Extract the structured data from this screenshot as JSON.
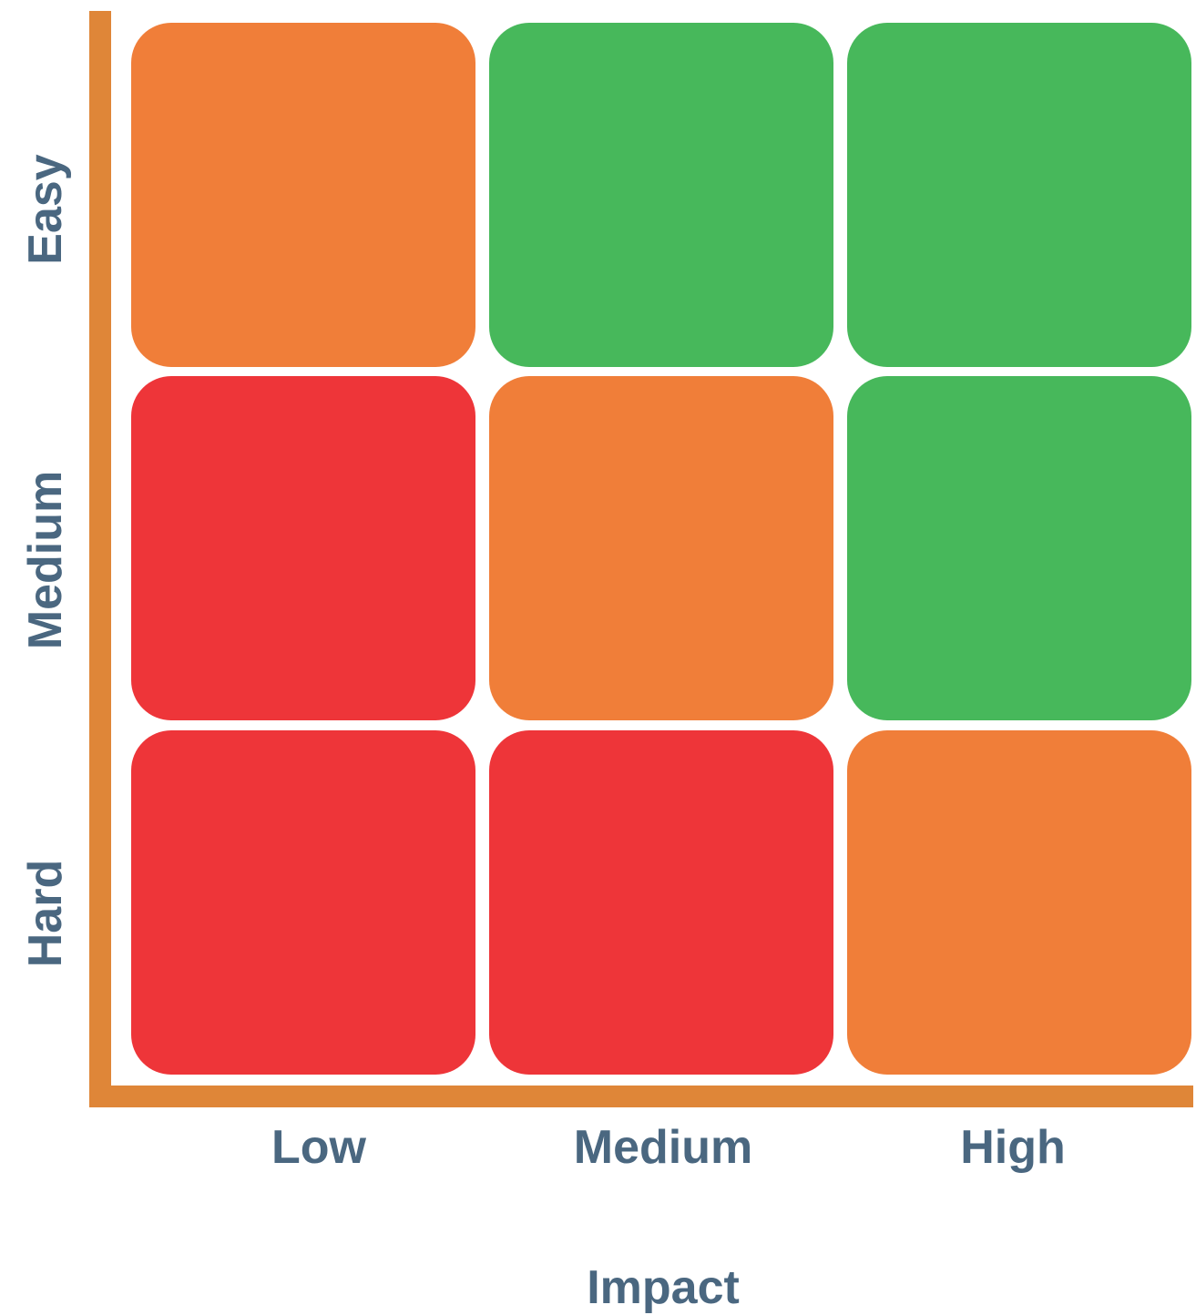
{
  "matrix": {
    "y_labels": [
      "Easy",
      "Medium",
      "Hard"
    ],
    "x_labels": [
      "Low",
      "Medium",
      "High"
    ],
    "x_title": "Impact",
    "cells": [
      [
        "orange",
        "green",
        "green"
      ],
      [
        "red",
        "orange",
        "green"
      ],
      [
        "red",
        "red",
        "orange"
      ]
    ]
  },
  "colors": {
    "green": "#47B85B",
    "orange": "#F07E39",
    "red": "#EE3539",
    "axis": "#DF8638",
    "label": "#4A6780"
  }
}
